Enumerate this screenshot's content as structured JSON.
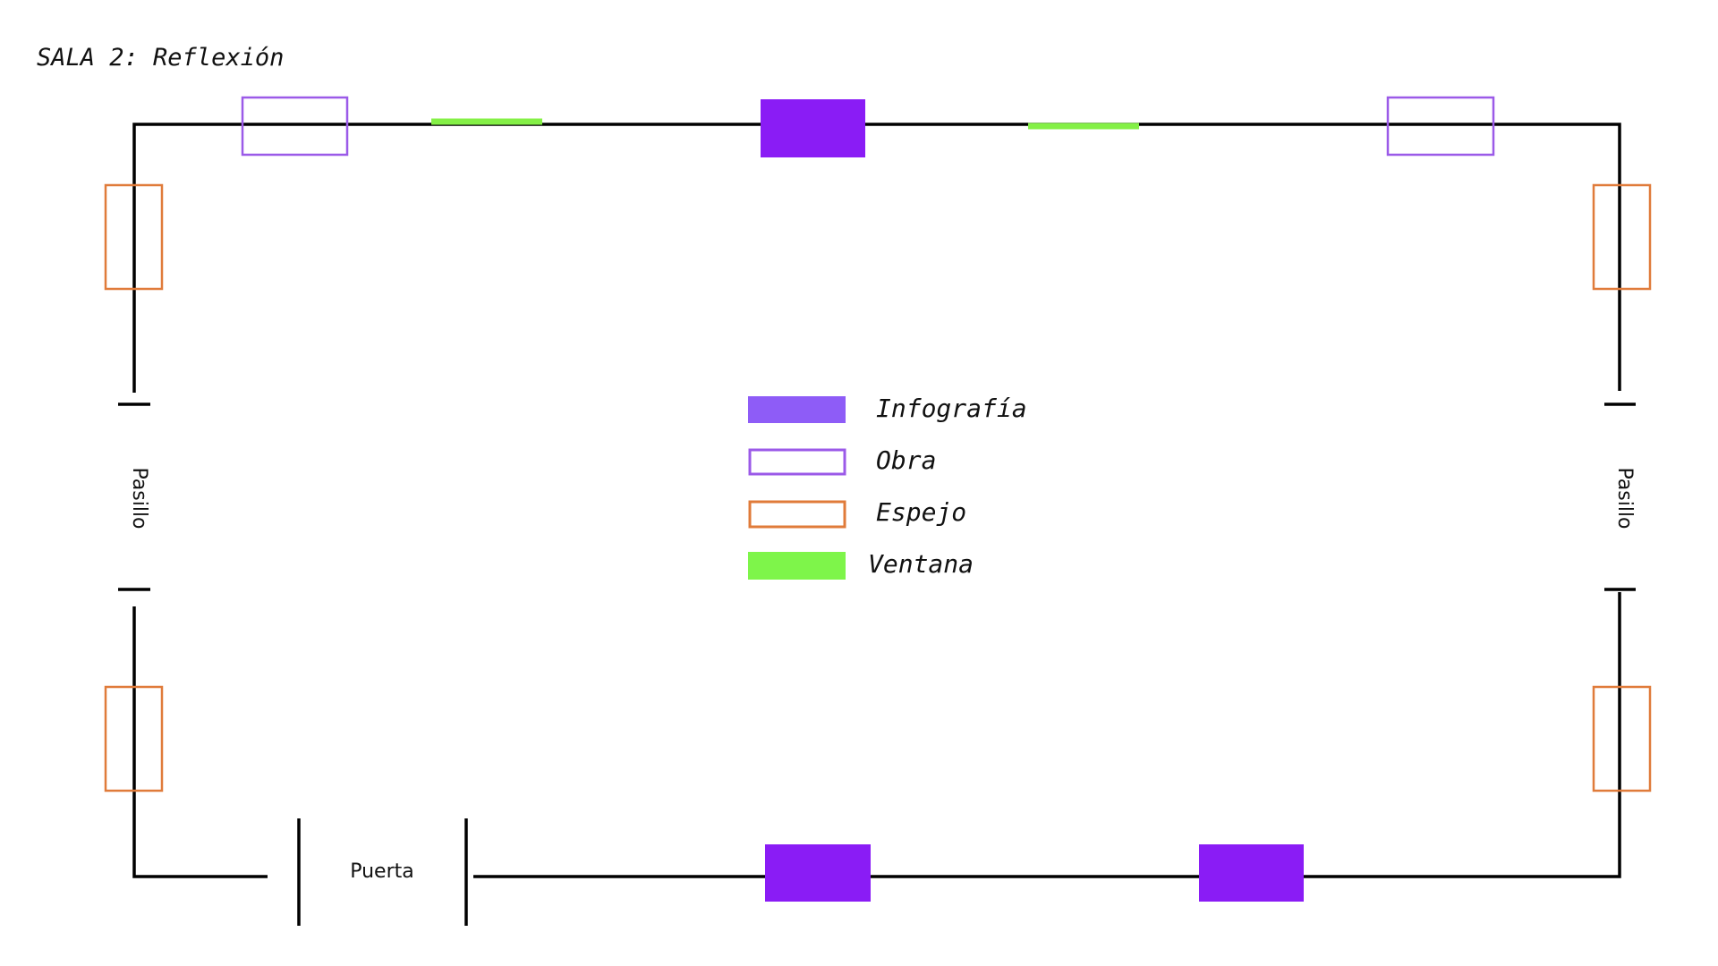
{
  "title": "SALA 2: Reflexión",
  "legend": [
    "Infografía",
    "Obra",
    "Espejo",
    "Ventana"
  ],
  "labels": {
    "left_corridor": "Pasillo",
    "right_corridor": "Pasillo",
    "door": "Puerta"
  }
}
